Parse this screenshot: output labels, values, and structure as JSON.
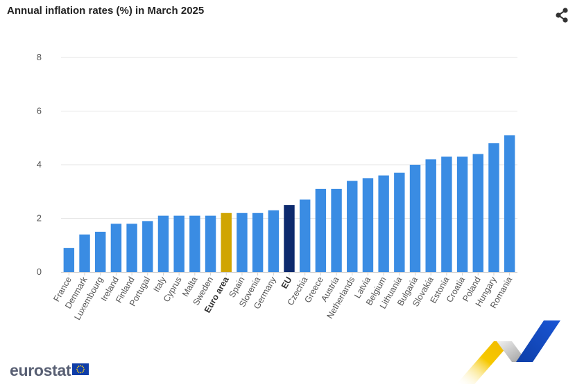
{
  "header": {
    "title": "Annual inflation rates (%) in March 2025"
  },
  "icons": {
    "share": "share-icon",
    "flag": "eu-flag-icon"
  },
  "brand": {
    "name": "eurostat"
  },
  "colors": {
    "default_bar": "#3a8ce3",
    "euro_area_bar": "#d0a502",
    "eu_bar": "#0d2a6e",
    "brand_text": "#585f73"
  },
  "chart_data": {
    "type": "bar",
    "title": "Annual inflation rates (%) in March 2025",
    "xlabel": "",
    "ylabel": "",
    "ylim": [
      0,
      8
    ],
    "yticks": [
      "0",
      "2",
      "4",
      "6",
      "8"
    ],
    "grid": true,
    "legend": "none",
    "categories": [
      "France",
      "Denmark",
      "Luxembourg",
      "Ireland",
      "Finland",
      "Portugal",
      "Italy",
      "Cyprus",
      "Malta",
      "Sweden",
      "Euro area",
      "Spain",
      "Slovenia",
      "Germany",
      "EU",
      "Czechia",
      "Greece",
      "Austria",
      "Netherlands",
      "Latvia",
      "Belgium",
      "Lithuania",
      "Bulgaria",
      "Slovakia",
      "Estonia",
      "Croatia",
      "Poland",
      "Hungary",
      "Romania"
    ],
    "values": [
      0.9,
      1.4,
      1.5,
      1.8,
      1.8,
      1.9,
      2.1,
      2.1,
      2.1,
      2.1,
      2.2,
      2.2,
      2.2,
      2.3,
      2.5,
      2.7,
      3.1,
      3.1,
      3.4,
      3.5,
      3.6,
      3.7,
      4.0,
      4.2,
      4.3,
      4.3,
      4.4,
      4.8,
      5.1
    ],
    "highlight": {
      "Euro area": "euro_area",
      "EU": "eu"
    }
  }
}
